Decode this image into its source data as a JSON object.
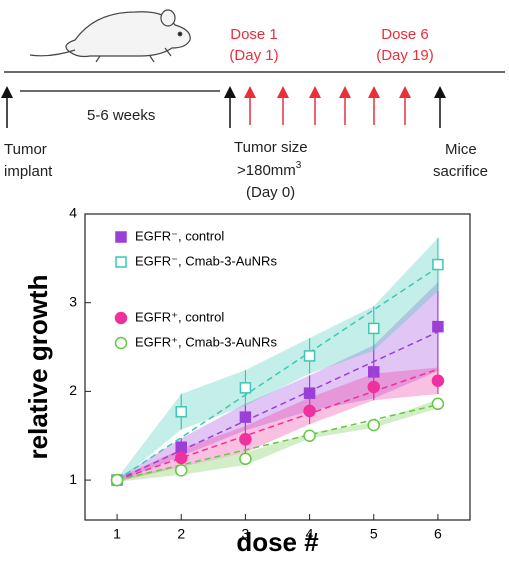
{
  "timeline": {
    "dose_first": "Dose 1",
    "dose_first_day": "(Day 1)",
    "dose_last": "Dose 6",
    "dose_last_day": "(Day 19)",
    "weeks": "5-6 weeks",
    "implant_1": "Tumor",
    "implant_2": "implant",
    "size_1": "Tumor size",
    "size_2": ">180mm",
    "size_2_sup": "3",
    "size_3": "(Day 0)",
    "sacrifice_1": "Mice",
    "sacrifice_2": "sacrifice"
  },
  "chart_data": {
    "type": "line",
    "x_label": "dose #",
    "y_label": "relative growth",
    "x": [
      1,
      2,
      3,
      4,
      5,
      6
    ],
    "xlim": [
      0.5,
      6.5
    ],
    "xticks": [
      1,
      2,
      3,
      4,
      5,
      6
    ],
    "ylim": [
      0.55,
      4
    ],
    "yticks": [
      1,
      2,
      3,
      4
    ],
    "series": [
      {
        "name": "EGFR⁻, control",
        "color": "#9b3fd9",
        "marker": "square",
        "filled": true,
        "values": [
          1,
          1.37,
          1.71,
          1.98,
          2.22,
          2.73
        ],
        "errors": [
          0.02,
          0.1,
          0.15,
          0.2,
          0.3,
          0.5
        ],
        "trend": [
          1.0,
          2.67
        ]
      },
      {
        "name": "EGFR⁻, Cmab-3-AuNRs",
        "color": "#3cc8b4",
        "marker": "square",
        "filled": false,
        "values": [
          1,
          1.77,
          2.04,
          2.4,
          2.71,
          3.43
        ],
        "errors": [
          0.02,
          0.2,
          0.2,
          0.2,
          0.25,
          0.3
        ],
        "trend": [
          1.0,
          3.4
        ]
      },
      {
        "name": "EGFR⁺, control",
        "color": "#f0309c",
        "marker": "circle",
        "filled": true,
        "values": [
          1,
          1.25,
          1.46,
          1.78,
          2.05,
          2.12
        ],
        "errors": [
          0.02,
          0.1,
          0.15,
          0.15,
          0.15,
          0.15
        ],
        "trend": [
          1.0,
          2.25
        ]
      },
      {
        "name": "EGFR⁺, Cmab-3-AuNRs",
        "color": "#66c844",
        "marker": "circle",
        "filled": false,
        "values": [
          1,
          1.11,
          1.24,
          1.5,
          1.62,
          1.86
        ],
        "errors": [
          0.02,
          0.05,
          0.07,
          0.03,
          0.03,
          0.05
        ],
        "trend": [
          1.0,
          1.85
        ]
      }
    ]
  }
}
